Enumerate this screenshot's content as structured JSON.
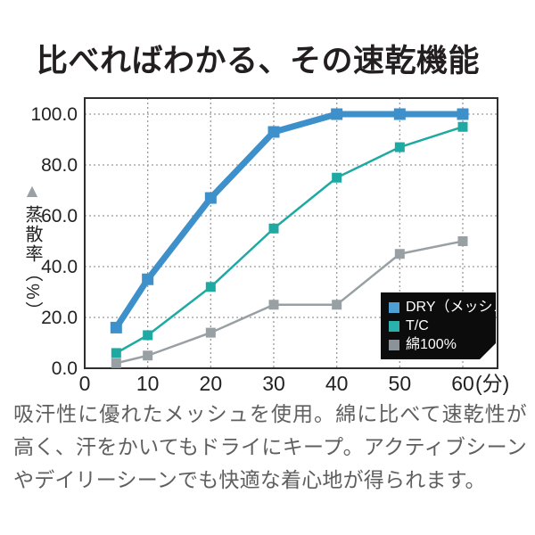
{
  "page": {
    "title": "比べればわかる、その速乾機能",
    "description": "吸汗性に優れたメッシュを使用。綿に比べて速乾性が高く、汗をかいてもドライにキープ。アクティブシーンやデイリーシーンでも快適な着心地が得られます。"
  },
  "colors": {
    "title_text": "#231f20",
    "body_text": "#5f5f5f",
    "axis_text": "#222222",
    "grid": "#9b9b9b",
    "plot_border": "#2e2e2e",
    "legend_bg": "#0c0c0c",
    "legend_text": "#ffffff"
  },
  "chart_data": {
    "type": "line",
    "title": "",
    "ylabel": "蒸散率（%）",
    "ylabel_marker": "▲",
    "xlabel": "",
    "x_unit": "(分)",
    "x": [
      5,
      10,
      20,
      30,
      40,
      50,
      60
    ],
    "x_ticks": [
      "0",
      "10",
      "20",
      "30",
      "40",
      "50",
      "60"
    ],
    "y_ticks": [
      "0.0",
      "20.0",
      "40.0",
      "60.0",
      "80.0",
      "100.0"
    ],
    "xlim": [
      0,
      65.5
    ],
    "ylim": [
      0,
      106.3
    ],
    "grid": true,
    "grid_style": "dotted",
    "legend_position": "bottom-right-inside",
    "series": [
      {
        "id": "dry-mesh",
        "name": "DRY（メッシュ）",
        "color": "#3d90c9",
        "legend_color": "#4d9fd4",
        "line_width": 7,
        "marker_size": 13,
        "values": [
          16,
          35,
          67,
          93,
          100,
          100,
          100
        ]
      },
      {
        "id": "tc",
        "name": "T/C",
        "color": "#1fa9a3",
        "legend_color": "#2bb0ac",
        "line_width": 2.5,
        "marker_size": 11,
        "values": [
          6,
          13,
          32,
          55,
          75,
          87,
          95
        ]
      },
      {
        "id": "cotton-100",
        "name": "綿100%",
        "color": "#98a0a4",
        "legend_color": "#8b9298",
        "line_width": 2.5,
        "marker_size": 11,
        "values": [
          2,
          5,
          14,
          25,
          25,
          45,
          50
        ]
      }
    ]
  }
}
